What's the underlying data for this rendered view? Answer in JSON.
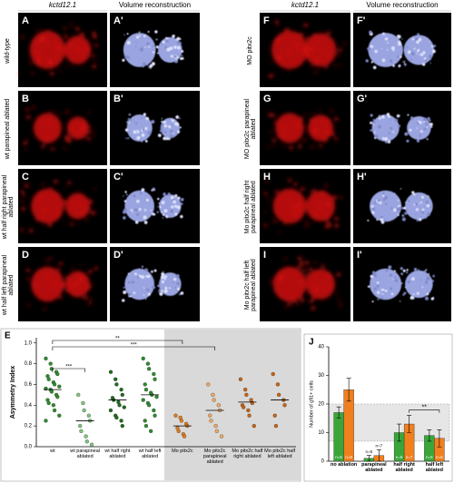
{
  "figure": {
    "left": {
      "headers": [
        "kctd12.1",
        "Volume reconstruction"
      ],
      "rows": [
        {
          "label": "wild-type",
          "letters": [
            "A",
            "A'"
          ]
        },
        {
          "label": "wt parapineal ablated",
          "letters": [
            "B",
            "B'"
          ]
        },
        {
          "label": "wt half right parapineal ablated",
          "letters": [
            "C",
            "C'"
          ]
        },
        {
          "label": "wt half left parapineal ablated",
          "letters": [
            "D",
            "D'"
          ]
        }
      ]
    },
    "right": {
      "headers": [
        "kctd12.1",
        "Volume reconstruction"
      ],
      "rows": [
        {
          "label": "MO pitx2c",
          "letters": [
            "F",
            "F'"
          ]
        },
        {
          "label": "MO pitx2c parapineal ablated",
          "letters": [
            "G",
            "G'"
          ]
        },
        {
          "label": "Mo pitx2c half right parapineal ablated",
          "letters": [
            "H",
            "H'"
          ]
        },
        {
          "label": "Mo pitx2c half left parapineal ablated",
          "letters": [
            "I",
            "I'"
          ]
        }
      ]
    }
  },
  "chart_data": [
    {
      "type": "strip",
      "panel_label": "E",
      "ylabel": "Asymmetry Index",
      "ylim": [
        0,
        1.05
      ],
      "yticks": [
        {
          "value": 0,
          "label": "0.0"
        },
        0.2,
        0.4,
        0.6,
        0.8,
        {
          "value": 1,
          "label": "1.0"
        }
      ],
      "series": [
        {
          "name": "wt",
          "color": "#2e8b2e",
          "mean": 0.55,
          "values": [
            0.85,
            0.8,
            0.75,
            0.72,
            0.7,
            0.68,
            0.65,
            0.62,
            0.6,
            0.58,
            0.56,
            0.55,
            0.53,
            0.5,
            0.48,
            0.45,
            0.42,
            0.4,
            0.35,
            0.3,
            0.25
          ]
        },
        {
          "name": "wt parapineal ablated",
          "color": "#7fc47f",
          "mean": 0.25,
          "values": [
            0.5,
            0.42,
            0.35,
            0.3,
            0.25,
            0.2,
            0.15,
            0.1,
            0.05,
            0.02
          ]
        },
        {
          "name": "wt half right ablated",
          "color": "#1f6b1f",
          "mean": 0.45,
          "values": [
            0.72,
            0.65,
            0.6,
            0.55,
            0.5,
            0.47,
            0.45,
            0.43,
            0.4,
            0.38,
            0.35,
            0.3,
            0.28,
            0.25,
            0.2
          ]
        },
        {
          "name": "wt half left ablated",
          "color": "#2e8b2e",
          "mean": 0.5,
          "values": [
            0.85,
            0.8,
            0.75,
            0.7,
            0.65,
            0.6,
            0.55,
            0.52,
            0.5,
            0.48,
            0.45,
            0.42,
            0.4,
            0.35,
            0.3,
            0.25,
            0.2,
            0.15
          ]
        },
        {
          "name": "Mo pitx2c",
          "color": "#e07b1a",
          "mean": 0.2,
          "values": [
            0.3,
            0.28,
            0.25,
            0.22,
            0.2,
            0.18,
            0.15,
            0.12,
            0.1
          ]
        },
        {
          "name": "Mo pitx2c parapineal ablated",
          "color": "#f0a860",
          "mean": 0.35,
          "values": [
            0.6,
            0.5,
            0.45,
            0.4,
            0.35,
            0.3,
            0.25,
            0.2,
            0.15,
            0.1
          ]
        },
        {
          "name": "Mo pitx2c half right ablated",
          "color": "#c86414",
          "mean": 0.43,
          "values": [
            0.65,
            0.55,
            0.5,
            0.45,
            0.42,
            0.4,
            0.38,
            0.35,
            0.3,
            0.2
          ]
        },
        {
          "name": "Mo pitx2c half left ablated",
          "color": "#c86414",
          "mean": 0.45,
          "values": [
            0.7,
            0.6,
            0.5,
            0.45,
            0.4,
            0.3,
            0.2
          ]
        }
      ],
      "annotations": [
        "**",
        "***",
        "***"
      ]
    },
    {
      "type": "bar",
      "panel_label": "J",
      "ylabel": "Number of gfi1+ cells",
      "categories": [
        "no ablation",
        "parapineal ablated",
        "half right ablated",
        "half left ablated"
      ],
      "ylim": [
        0,
        40
      ],
      "yticks": [
        0,
        10,
        20,
        30,
        40
      ],
      "reference_band": [
        7,
        20
      ],
      "series": [
        {
          "color": "#3aa63a",
          "values": [
            17,
            1,
            10,
            9
          ],
          "errors": [
            2,
            1,
            3,
            2
          ],
          "n_labels": [
            "n=6",
            "n=5",
            "n=5",
            "n=6"
          ]
        },
        {
          "color": "#f07f1e",
          "values": [
            25,
            2,
            13,
            8
          ],
          "errors": [
            4,
            2,
            3,
            3
          ],
          "n_labels": [
            "n=8",
            "n=7",
            "n=7",
            "n=5"
          ]
        }
      ],
      "annotations": [
        "**"
      ]
    }
  ]
}
